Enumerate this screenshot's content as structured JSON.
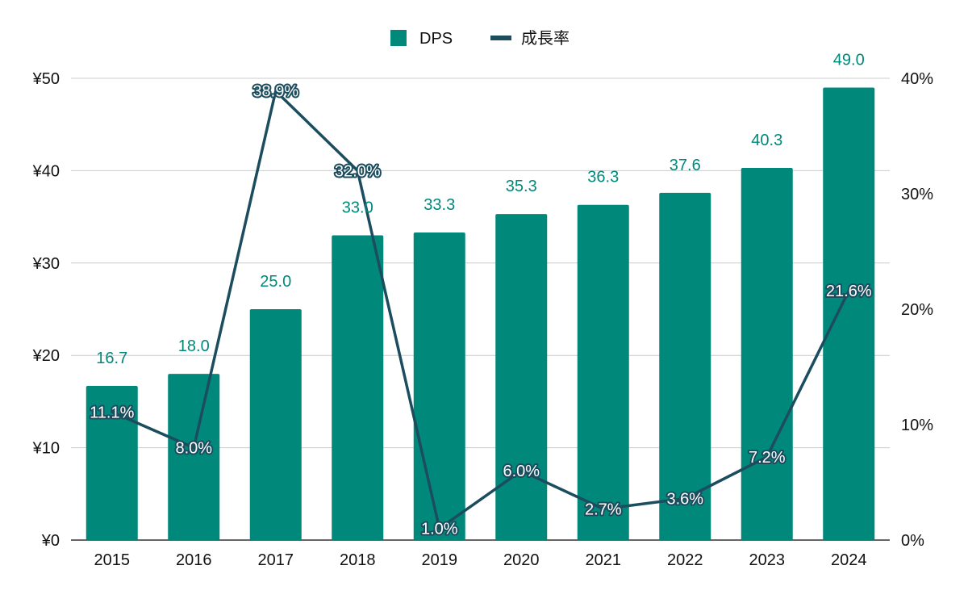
{
  "chart_data": {
    "type": "bar",
    "categories": [
      "2015",
      "2016",
      "2017",
      "2018",
      "2019",
      "2020",
      "2021",
      "2022",
      "2023",
      "2024"
    ],
    "series": [
      {
        "name": "DPS",
        "type": "bar",
        "axis": "left",
        "color": "#00897b",
        "values": [
          16.7,
          18.0,
          25.0,
          33.0,
          33.3,
          35.3,
          36.3,
          37.6,
          40.3,
          49.0
        ],
        "labels": [
          "16.7",
          "18.0",
          "25.0",
          "33.0",
          "33.3",
          "35.3",
          "36.3",
          "37.6",
          "40.3",
          "49.0"
        ]
      },
      {
        "name": "成長率",
        "type": "line",
        "axis": "right",
        "color": "#1b4d5e",
        "values": [
          11.1,
          8.0,
          38.9,
          32.0,
          1.0,
          6.0,
          2.7,
          3.6,
          7.2,
          21.6
        ],
        "labels": [
          "11.1%",
          "8.0%",
          "38.9%",
          "32.0%",
          "1.0%",
          "6.0%",
          "2.7%",
          "3.6%",
          "7.2%",
          "21.6%"
        ]
      }
    ],
    "y_left": {
      "range": [
        0,
        50
      ],
      "ticks": [
        0,
        10,
        20,
        30,
        40,
        50
      ],
      "tick_labels": [
        "¥0",
        "¥10",
        "¥20",
        "¥30",
        "¥40",
        "¥50"
      ]
    },
    "y_right": {
      "range": [
        0,
        40
      ],
      "ticks": [
        0,
        10,
        20,
        30,
        40
      ],
      "tick_labels": [
        "0%",
        "10%",
        "20%",
        "30%",
        "40%"
      ]
    },
    "grid": true,
    "legend_position": "top-center",
    "title": "",
    "xlabel": "",
    "ylabel": ""
  }
}
